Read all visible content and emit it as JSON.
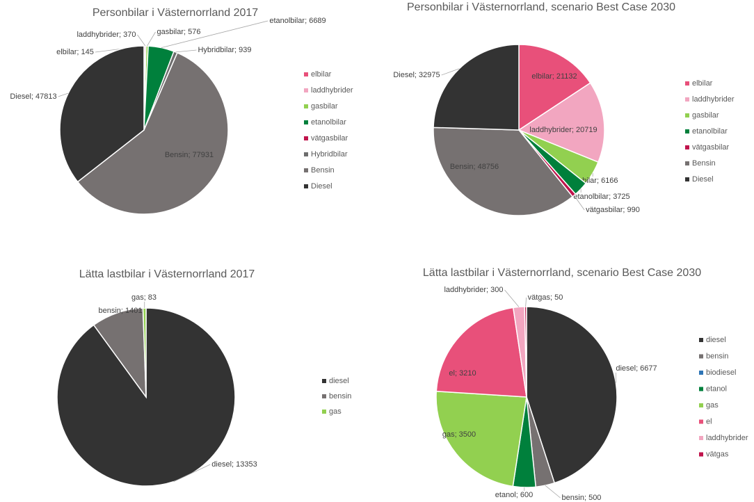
{
  "chart_data": [
    {
      "type": "pie",
      "title": "Personbilar i Västernorrland 2017",
      "categories": [
        "elbilar",
        "laddhybrider",
        "gasbilar",
        "etanolbilar",
        "vätgasbilar",
        "Hybridbilar",
        "Bensin",
        "Diesel"
      ],
      "values": [
        145,
        370,
        576,
        6689,
        0,
        939,
        77931,
        47813
      ],
      "value_labels": [
        "elbilar; 145",
        "laddhybrider; 370",
        "gasbilar; 576",
        "etanolbilar; 6689",
        null,
        "Hybridbilar; 939",
        "Bensin; 77931",
        "Diesel; 47813"
      ],
      "colors": [
        "#e8507a",
        "#f2a6c0",
        "#92d050",
        "#00803c",
        "#c0144c",
        "#6d6d6d",
        "#767171",
        "#333333"
      ]
    },
    {
      "type": "pie",
      "title": "Personbilar i Västernorrland, scenario Best Case 2030",
      "categories": [
        "elbilar",
        "laddhybrider",
        "gasbilar",
        "etanolbilar",
        "vätgasbilar",
        "Bensin",
        "Diesel"
      ],
      "values": [
        21132,
        20719,
        6166,
        3725,
        990,
        48756,
        32975
      ],
      "value_labels": [
        "elbilar; 21132",
        "laddhybrider; 20719",
        "gasbilar; 6166",
        "etanolbilar; 3725",
        "vätgasbilar; 990",
        "Bensin; 48756",
        "Diesel; 32975"
      ],
      "colors": [
        "#e8507a",
        "#f2a6c0",
        "#92d050",
        "#00803c",
        "#c0144c",
        "#767171",
        "#333333"
      ]
    },
    {
      "type": "pie",
      "title": "Lätta lastbilar i Västernorrland 2017",
      "categories": [
        "diesel",
        "bensin",
        "gas"
      ],
      "values": [
        13353,
        1401,
        83
      ],
      "value_labels": [
        "diesel; 13353",
        "bensin; 1401",
        "gas; 83"
      ],
      "colors": [
        "#333333",
        "#767171",
        "#92d050"
      ]
    },
    {
      "type": "pie",
      "title": "Lätta lastbilar i Västernorrland, scenario Best Case 2030",
      "categories": [
        "diesel",
        "bensin",
        "biodiesel",
        "etanol",
        "gas",
        "el",
        "laddhybrider",
        "vätgas"
      ],
      "values": [
        6677,
        500,
        0,
        600,
        3500,
        3210,
        300,
        50
      ],
      "value_labels": [
        "diesel; 6677",
        "bensin; 500",
        null,
        "etanol; 600",
        "gas; 3500",
        "el; 3210",
        "laddhybrider; 300",
        "vätgas; 50"
      ],
      "colors": [
        "#333333",
        "#767171",
        "#2e75b6",
        "#00803c",
        "#92d050",
        "#e8507a",
        "#f2a6c0",
        "#c0144c"
      ]
    }
  ]
}
